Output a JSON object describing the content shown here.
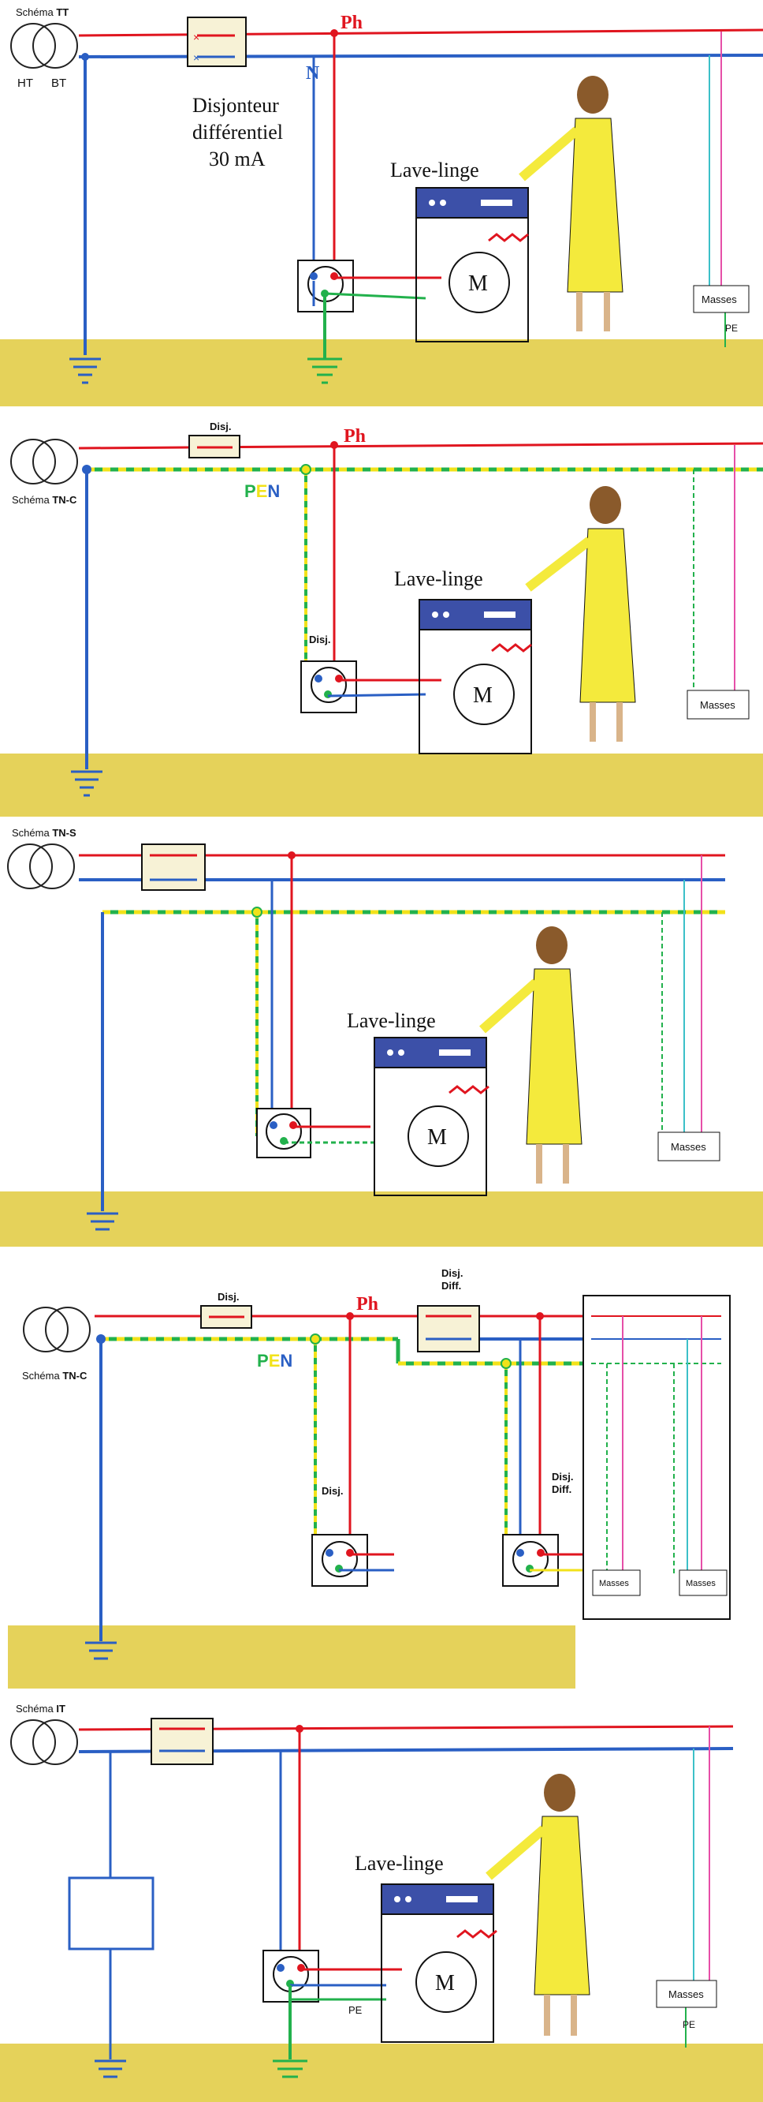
{
  "colors": {
    "phase": "#e0151f",
    "neutral": "#2a5fc4",
    "pe": "#22b14c",
    "pen_yellow": "#f2e21a",
    "pink": "#e64fa8",
    "cyan": "#3cc0c8",
    "ground": "#e5d25a",
    "motor": "#111111",
    "figure": "#f4ea3c"
  },
  "icons": [
    "transformer-icon",
    "breaker-icon",
    "socket-icon",
    "motor-icon",
    "washing-machine-icon",
    "ground-symbol-icon",
    "woman-figure-icon",
    "heater-coil-icon"
  ],
  "panels": [
    {
      "scheme_prefix": "Schéma",
      "scheme": "TT",
      "ht": "HT",
      "bt": "BT",
      "ph": "Ph",
      "n": "N",
      "breaker_l1": "Disjonteur",
      "breaker_l2": "différentiel",
      "breaker_l3": "30 mA",
      "machine": "Lave-linge",
      "motor": "M",
      "masses": "Masses",
      "pe": "PE"
    },
    {
      "scheme_prefix": "Schéma",
      "scheme": "TN-C",
      "disj": "Disj.",
      "ph": "Ph",
      "pen_p": "P",
      "pen_e": "E",
      "pen_n": "N",
      "socket_disj": "Disj.",
      "machine": "Lave-linge",
      "motor": "M",
      "masses": "Masses"
    },
    {
      "scheme_prefix": "Schéma",
      "scheme": "TN-S",
      "machine": "Lave-linge",
      "motor": "M",
      "masses": "Masses"
    },
    {
      "scheme_prefix": "Schéma",
      "scheme": "TN-C",
      "disj": "Disj.",
      "disj_diff_l1": "Disj.",
      "disj_diff_l2": "Diff.",
      "ph": "Ph",
      "pen_p": "P",
      "pen_e": "E",
      "pen_n": "N",
      "socket1_disj": "Disj.",
      "socket2_l1": "Disj.",
      "socket2_l2": "Diff.",
      "masses_1": "Masses",
      "masses_2": "Masses"
    },
    {
      "scheme_prefix": "Schéma",
      "scheme": "IT",
      "machine": "Lave-linge",
      "motor": "M",
      "pe": "PE",
      "masses": "Masses",
      "pe_right": "PE"
    }
  ]
}
